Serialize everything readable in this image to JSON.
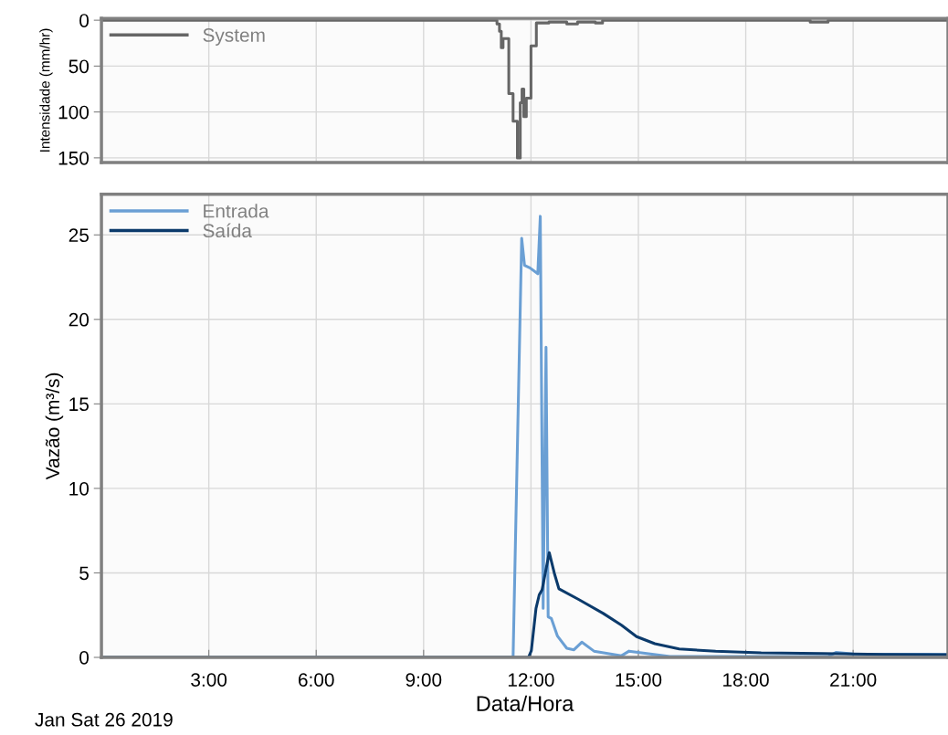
{
  "chart_data": [
    {
      "type": "step",
      "ylabel": "Intensidade (mm/hr)",
      "ylim": [
        155,
        -2
      ],
      "yticks": [
        0,
        50,
        100,
        150
      ],
      "xlim": [
        0,
        23.65
      ],
      "xticks": [
        {
          "value": 3,
          "label": null
        },
        {
          "value": 6,
          "label": null
        },
        {
          "value": 9,
          "label": null
        },
        {
          "value": 12,
          "label": null
        },
        {
          "value": 15,
          "label": null
        },
        {
          "value": 18,
          "label": null
        },
        {
          "value": 21,
          "label": null
        }
      ],
      "tick_labels": "y",
      "grid": true,
      "legend": "top left",
      "series": [
        {
          "name": "System",
          "color": "#666666",
          "x": [
            0,
            11.05,
            11.12,
            11.17,
            11.22,
            11.3,
            11.38,
            11.5,
            11.62,
            11.7,
            11.75,
            11.8,
            11.87,
            12.0,
            12.15,
            12.5,
            13.0,
            13.3,
            13.8,
            14.0,
            19.8,
            20.3,
            23.65
          ],
          "values": [
            0,
            4,
            12,
            30,
            20,
            20,
            80,
            110,
            150,
            90,
            75,
            105,
            85,
            28,
            3,
            2,
            4,
            2,
            3,
            0,
            2,
            0,
            0
          ]
        }
      ]
    },
    {
      "type": "line",
      "xlabel": "Data/Hora",
      "ylabel": "Vazão (m³/s)",
      "ylim": [
        0,
        27.4
      ],
      "yticks": [
        0,
        5,
        10,
        15,
        20,
        25
      ],
      "xlim": [
        0,
        23.65
      ],
      "xticks": [
        {
          "value": 3,
          "label": "3:00"
        },
        {
          "value": 6,
          "label": "6:00"
        },
        {
          "value": 9,
          "label": "9:00"
        },
        {
          "value": 12,
          "label": "12:00"
        },
        {
          "value": 15,
          "label": "15:00"
        },
        {
          "value": 18,
          "label": "18:00"
        },
        {
          "value": 21,
          "label": "21:00"
        }
      ],
      "grid": true,
      "legend": "top left",
      "annotations": [
        "Jan Sat 26 2019"
      ],
      "series": [
        {
          "name": "Entrada",
          "color": "#6a9fd4",
          "x": [
            0,
            11.5,
            11.74,
            11.82,
            11.97,
            12.19,
            12.26,
            12.34,
            12.42,
            12.48,
            12.57,
            12.74,
            13.0,
            13.2,
            13.42,
            13.76,
            14.53,
            14.74,
            15.88,
            20.3,
            20.53,
            21.0,
            23.65
          ],
          "values": [
            0,
            0,
            24.8,
            23.2,
            23.05,
            22.7,
            26.1,
            2.9,
            18.35,
            2.4,
            2.3,
            1.26,
            0.54,
            0.45,
            0.9,
            0.37,
            0.1,
            0.37,
            0.05,
            0.05,
            0.3,
            0.2,
            0.18
          ]
        },
        {
          "name": "Saída",
          "color": "#0b3a6b",
          "x": [
            0,
            11.93,
            12.01,
            12.14,
            12.23,
            12.31,
            12.51,
            12.65,
            12.78,
            13.33,
            14.02,
            14.53,
            14.95,
            15.46,
            16.14,
            17.16,
            18.43,
            20.14,
            21.84,
            23.65
          ],
          "values": [
            0,
            0,
            0.4,
            2.9,
            3.7,
            4.0,
            6.2,
            5.0,
            4.06,
            3.43,
            2.6,
            1.9,
            1.23,
            0.81,
            0.5,
            0.36,
            0.27,
            0.23,
            0.18,
            0.16
          ]
        }
      ]
    }
  ]
}
